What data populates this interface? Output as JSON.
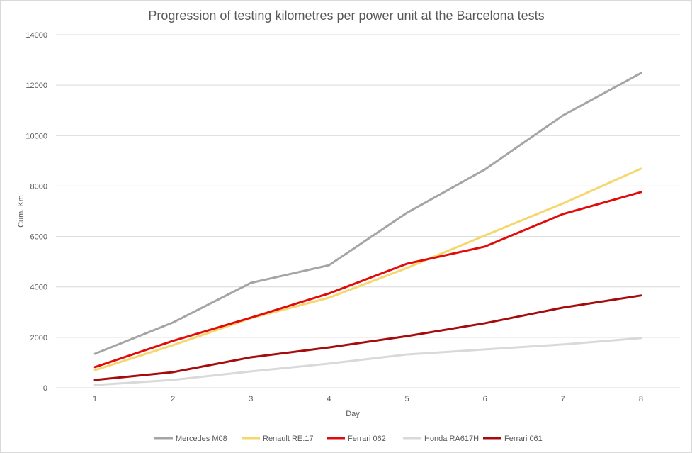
{
  "chart_data": {
    "type": "line",
    "title": "Progression of testing kilometres per power unit at the Barcelona tests",
    "xlabel": "Day",
    "ylabel": "Cum. Km",
    "categories": [
      "1",
      "2",
      "3",
      "4",
      "5",
      "6",
      "7",
      "8"
    ],
    "ylim": [
      0,
      14000
    ],
    "yticks": [
      "0",
      "2000",
      "4000",
      "6000",
      "8000",
      "10000",
      "12000",
      "14000"
    ],
    "grid": true,
    "legend": "bottom",
    "series": [
      {
        "name": "Mercedes M08",
        "color": "#a5a5a5",
        "values": [
          1350,
          2590,
          4160,
          4860,
          6940,
          8660,
          10800,
          12480
        ]
      },
      {
        "name": "Renault RE.17",
        "color": "#f5d76e",
        "values": [
          700,
          1690,
          2760,
          3570,
          4750,
          6040,
          7310,
          8690
        ]
      },
      {
        "name": "Ferrari 062",
        "color": "#e00b0b",
        "values": [
          820,
          1860,
          2780,
          3740,
          4920,
          5600,
          6890,
          7760
        ]
      },
      {
        "name": "Honda RA617H",
        "color": "#d9d9d9",
        "values": [
          110,
          310,
          650,
          960,
          1320,
          1520,
          1720,
          1970
        ]
      },
      {
        "name": "Ferrari 061",
        "color": "#a50c0c",
        "values": [
          310,
          620,
          1210,
          1600,
          2050,
          2560,
          3180,
          3660
        ]
      }
    ]
  }
}
